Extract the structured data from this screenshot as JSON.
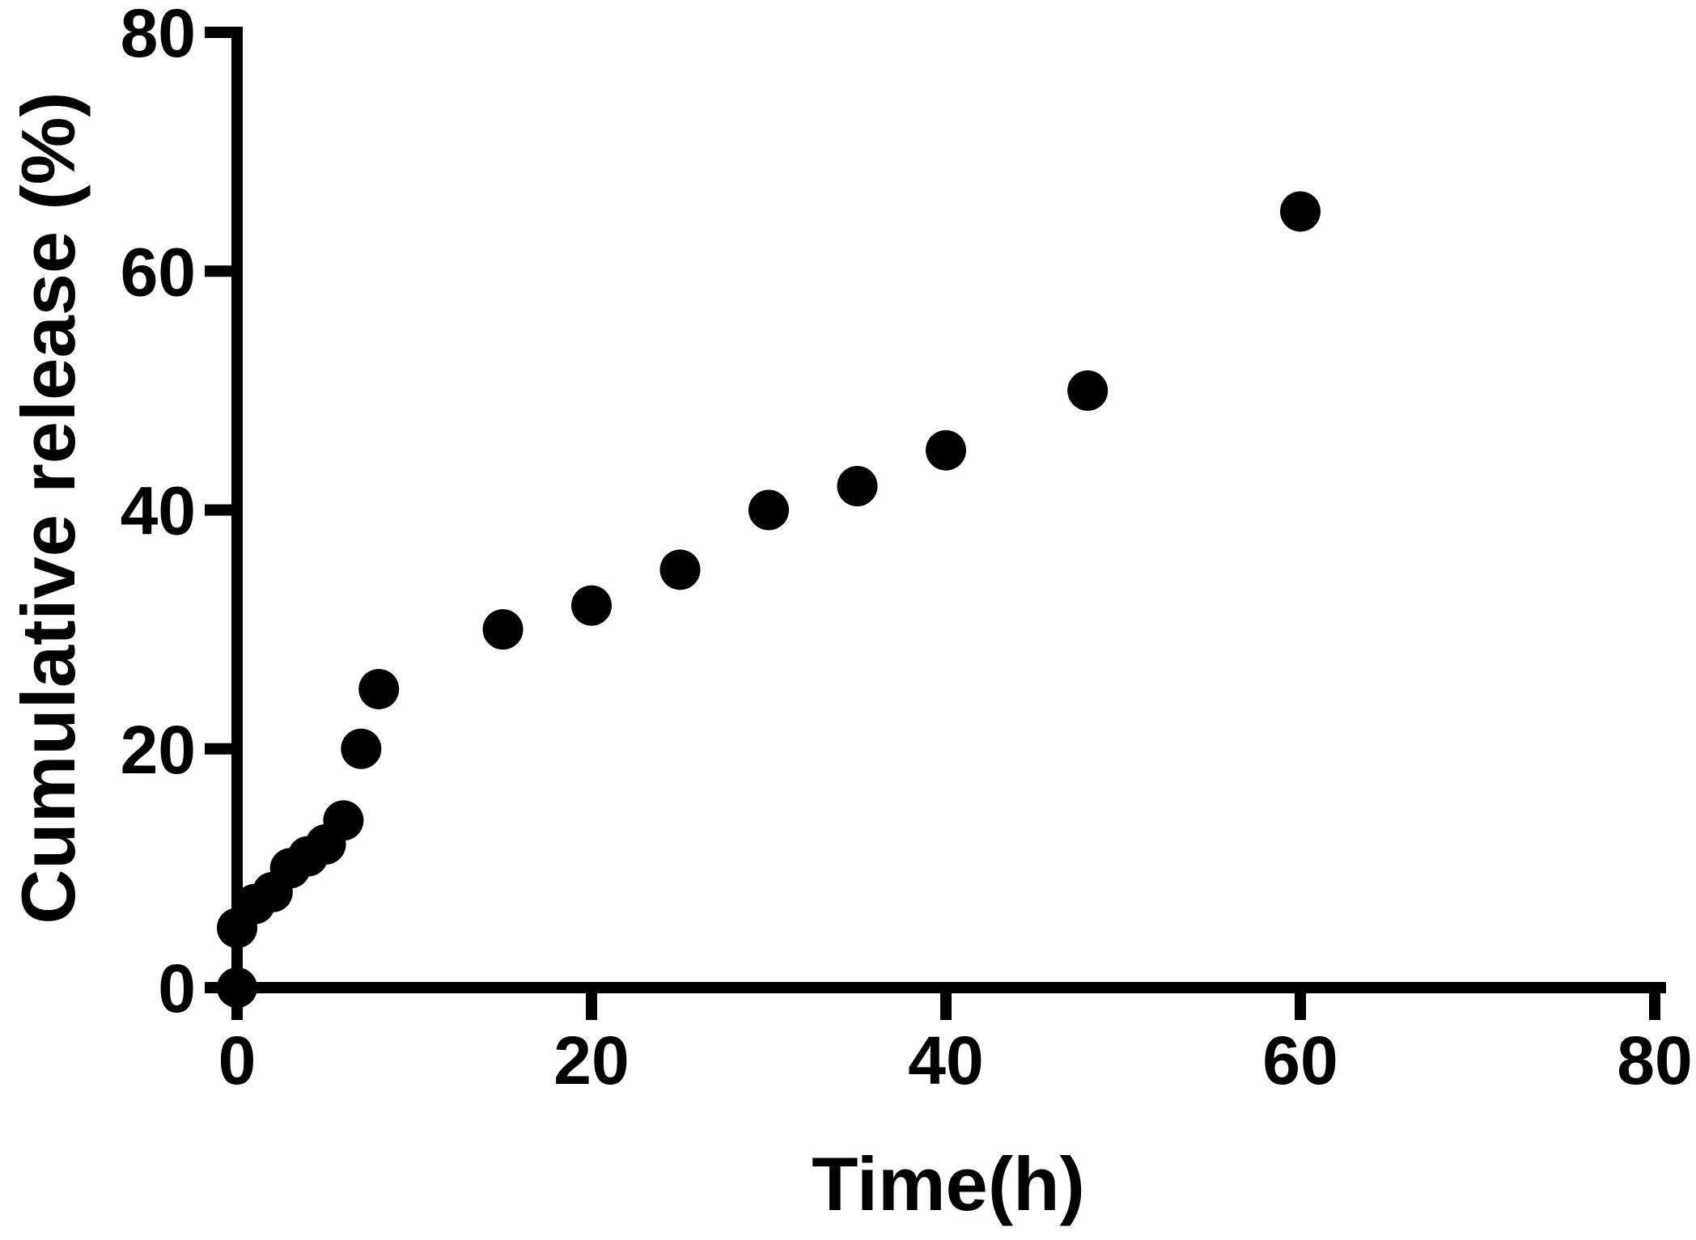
{
  "chart_data": {
    "type": "scatter",
    "xlabel": "Time(h)",
    "ylabel": "Cumulative release (%)",
    "xlim": [
      0,
      80
    ],
    "ylim": [
      0,
      80
    ],
    "x_ticks": [
      "0",
      "20",
      "40",
      "60",
      "80"
    ],
    "y_ticks": [
      "0",
      "20",
      "40",
      "60",
      "80"
    ],
    "grid": false,
    "legend": "none",
    "marker_color": "#000000",
    "series": [
      {
        "x": [
          0,
          0,
          1,
          2,
          3,
          4,
          5,
          6,
          7,
          8,
          15,
          20,
          25,
          30,
          35,
          40,
          48,
          60
        ],
        "y": [
          0,
          5,
          7,
          8,
          10,
          11,
          12,
          14,
          20,
          25,
          30,
          32,
          35,
          40,
          42,
          45,
          50,
          65
        ]
      }
    ]
  }
}
